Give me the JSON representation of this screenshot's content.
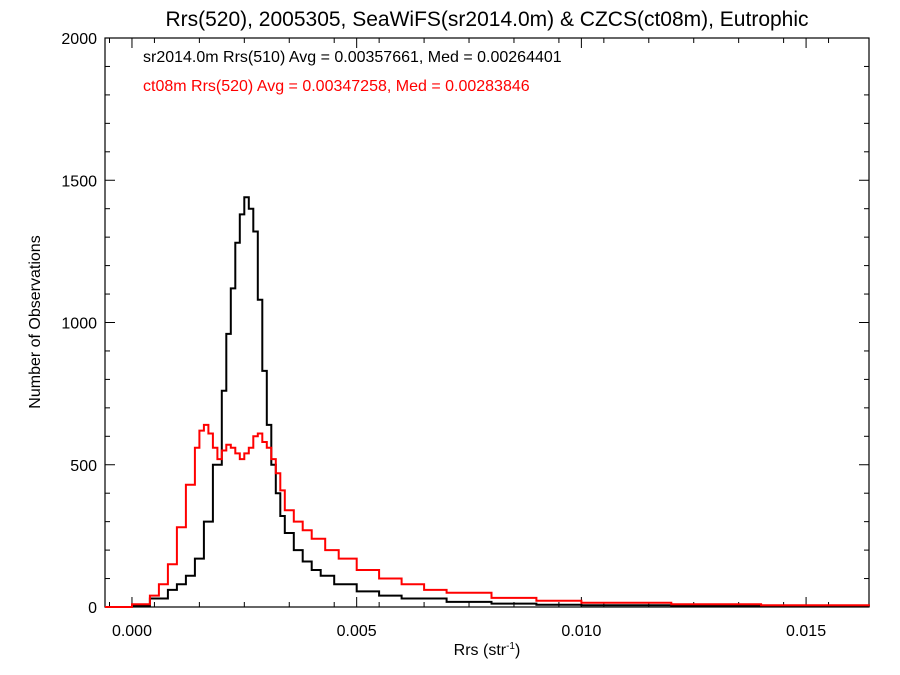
{
  "chart_data": {
    "type": "line",
    "title": "Rrs(520), 2005305, SeaWiFS(sr2014.0m) & CZCS(ct08m), Eutrophic",
    "xlabel": "Rrs (str",
    "xlabel_sup": "-1",
    "xlabel_end": ")",
    "ylabel": "Number of Observations",
    "xlim": [
      -0.0006,
      0.0164
    ],
    "ylim": [
      0,
      2000
    ],
    "xticks": [
      0.0,
      0.005,
      0.01,
      0.015
    ],
    "xtick_labels": [
      "0.000",
      "0.005",
      "0.010",
      "0.015"
    ],
    "yticks": [
      0,
      500,
      1000,
      1500,
      2000
    ],
    "ytick_labels": [
      "0",
      "500",
      "1000",
      "1500",
      "2000"
    ],
    "legend_placement": "top-left",
    "series": [
      {
        "name": "sr2014.0m Rrs(510) Avg = 0.00357661, Med = 0.00264401",
        "color": "#000000",
        "x": [
          -0.0006,
          0.0,
          0.0004,
          0.0008,
          0.001,
          0.0012,
          0.0014,
          0.0016,
          0.0018,
          0.002,
          0.0021,
          0.0022,
          0.0023,
          0.0024,
          0.0025,
          0.0026,
          0.0027,
          0.0028,
          0.0029,
          0.003,
          0.0031,
          0.0032,
          0.0033,
          0.0034,
          0.0036,
          0.0038,
          0.004,
          0.0042,
          0.0045,
          0.005,
          0.0055,
          0.006,
          0.007,
          0.008,
          0.009,
          0.01,
          0.012,
          0.014,
          0.0164
        ],
        "y": [
          0,
          5,
          30,
          60,
          80,
          110,
          170,
          300,
          500,
          760,
          960,
          1120,
          1280,
          1380,
          1440,
          1400,
          1320,
          1080,
          830,
          640,
          500,
          400,
          320,
          260,
          200,
          160,
          130,
          110,
          80,
          55,
          40,
          30,
          18,
          12,
          8,
          6,
          4,
          3,
          2
        ]
      },
      {
        "name": "ct08m Rrs(520) Avg = 0.00347258, Med = 0.00283846",
        "color": "#ff0000",
        "x": [
          -0.0006,
          0.0,
          0.0004,
          0.0006,
          0.0008,
          0.001,
          0.0012,
          0.0014,
          0.0015,
          0.0016,
          0.0017,
          0.0018,
          0.0019,
          0.002,
          0.0021,
          0.0022,
          0.0023,
          0.0024,
          0.0025,
          0.0026,
          0.0027,
          0.0028,
          0.0029,
          0.003,
          0.0031,
          0.0032,
          0.0033,
          0.0034,
          0.0036,
          0.0038,
          0.004,
          0.0043,
          0.0046,
          0.005,
          0.0055,
          0.006,
          0.0065,
          0.007,
          0.008,
          0.009,
          0.01,
          0.012,
          0.014,
          0.0164
        ],
        "y": [
          0,
          10,
          40,
          80,
          150,
          280,
          430,
          560,
          620,
          640,
          610,
          560,
          520,
          550,
          570,
          560,
          540,
          520,
          540,
          560,
          600,
          610,
          580,
          560,
          520,
          470,
          410,
          340,
          300,
          270,
          240,
          200,
          170,
          130,
          100,
          80,
          60,
          50,
          32,
          22,
          15,
          10,
          6,
          4
        ]
      }
    ]
  }
}
